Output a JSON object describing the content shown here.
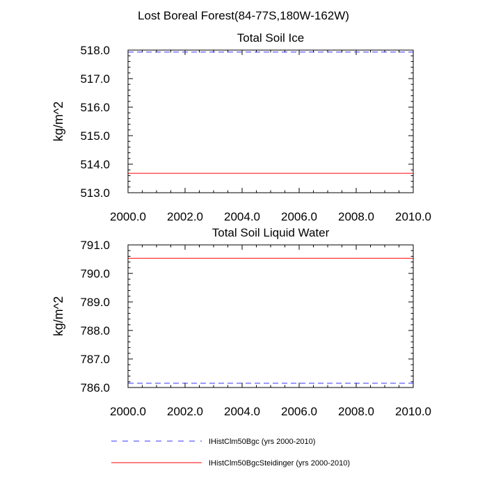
{
  "figure_title": "Lost Boreal Forest(84-77S,180W-162W)",
  "chart_data": [
    {
      "type": "line",
      "title": "Total Soil Ice",
      "xlabel": "",
      "ylabel": "kg/m^2",
      "xlim": [
        2000,
        2010
      ],
      "ylim": [
        513.0,
        518.0
      ],
      "x_ticks": [
        "2000.0",
        "2002.0",
        "2004.0",
        "2006.0",
        "2008.0",
        "2010.0"
      ],
      "y_ticks": [
        "513.0",
        "514.0",
        "515.0",
        "516.0",
        "517.0",
        "518.0"
      ],
      "series": [
        {
          "name": "IHistClm50Bgc (yrs 2000-2010)",
          "x": [
            2000,
            2010
          ],
          "values": [
            517.93,
            517.93
          ],
          "color": "#3333ff",
          "dash": true
        },
        {
          "name": "IHistClm50BgcSteidinger (yrs 2000-2010)",
          "x": [
            2000,
            2010
          ],
          "values": [
            513.68,
            513.68
          ],
          "color": "#ff0000",
          "dash": false
        }
      ]
    },
    {
      "type": "line",
      "title": "Total Soil Liquid Water",
      "xlabel": "",
      "ylabel": "kg/m^2",
      "xlim": [
        2000,
        2010
      ],
      "ylim": [
        786.0,
        791.0
      ],
      "x_ticks": [
        "2000.0",
        "2002.0",
        "2004.0",
        "2006.0",
        "2008.0",
        "2010.0"
      ],
      "y_ticks": [
        "786.0",
        "787.0",
        "788.0",
        "789.0",
        "790.0",
        "791.0"
      ],
      "series": [
        {
          "name": "IHistClm50Bgc (yrs 2000-2010)",
          "x": [
            2000,
            2010
          ],
          "values": [
            786.15,
            786.15
          ],
          "color": "#3333ff",
          "dash": true
        },
        {
          "name": "IHistClm50BgcSteidinger (yrs 2000-2010)",
          "x": [
            2000,
            2010
          ],
          "values": [
            790.53,
            790.53
          ],
          "color": "#ff0000",
          "dash": false
        }
      ]
    }
  ],
  "legend": {
    "placement": "bottom",
    "entries": [
      {
        "label": "IHistClm50Bgc (yrs 2000-2010)",
        "color": "#3333ff",
        "dash": true
      },
      {
        "label": "IHistClm50BgcSteidinger (yrs 2000-2010)",
        "color": "#ff0000",
        "dash": false
      }
    ]
  }
}
